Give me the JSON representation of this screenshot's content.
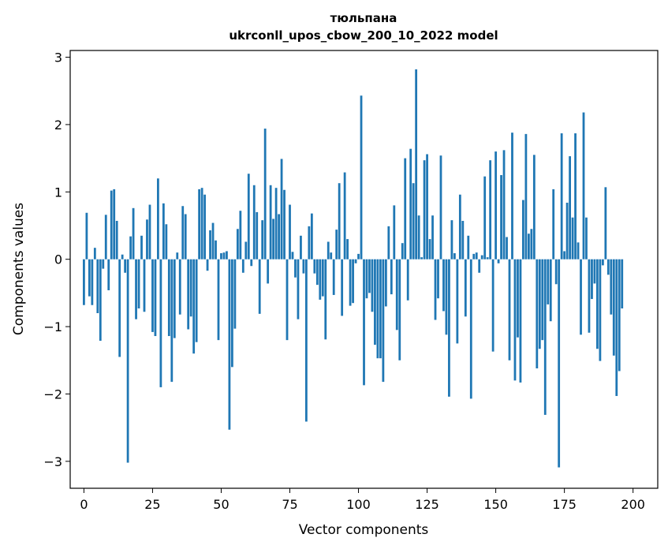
{
  "chart_data": {
    "type": "bar",
    "title": "тюльпана",
    "subtitle": "ukrconll_upos_cbow_200_10_2022 model",
    "xlabel": "Vector components",
    "ylabel": "Components values",
    "xlim": [
      -5,
      209
    ],
    "ylim": [
      -3.4,
      3.1
    ],
    "xticks": [
      0,
      25,
      50,
      75,
      100,
      125,
      150,
      175,
      200
    ],
    "yticks": [
      -3,
      -2,
      -1,
      0,
      1,
      2,
      3
    ],
    "ytick_labels": [
      "−3",
      "−2",
      "−1",
      "0",
      "1",
      "2",
      "3"
    ],
    "bar_color": "#1f77b4",
    "series": [
      {
        "name": "тюльпана",
        "values": [
          -0.68,
          0.69,
          -0.55,
          -0.68,
          0.17,
          -0.8,
          -1.21,
          -0.14,
          0.66,
          -0.46,
          1.02,
          1.04,
          0.57,
          -1.45,
          0.07,
          -0.2,
          -3.02,
          0.34,
          0.76,
          -0.89,
          -0.73,
          0.35,
          -0.78,
          0.59,
          0.81,
          -1.08,
          -1.14,
          1.2,
          -1.9,
          0.83,
          0.52,
          -1.14,
          -1.82,
          -1.17,
          0.1,
          -0.82,
          0.79,
          0.67,
          -1.04,
          -0.85,
          -1.4,
          -1.23,
          1.04,
          1.06,
          0.96,
          -0.17,
          0.43,
          0.54,
          0.28,
          -1.2,
          0.09,
          0.1,
          0.12,
          -2.53,
          -1.6,
          -1.03,
          0.45,
          0.72,
          -0.2,
          0.26,
          1.27,
          -0.1,
          1.1,
          0.7,
          -0.81,
          0.58,
          1.94,
          -0.36,
          1.1,
          0.6,
          1.06,
          0.67,
          1.49,
          1.03,
          -1.2,
          0.81,
          0.11,
          -0.27,
          -0.89,
          0.35,
          -0.21,
          -2.41,
          0.49,
          0.68,
          -0.21,
          -0.38,
          -0.6,
          -0.55,
          -1.19,
          0.26,
          0.1,
          -0.53,
          0.44,
          1.13,
          -0.84,
          1.29,
          0.3,
          -0.69,
          -0.65,
          -0.06,
          0.08,
          2.43,
          -1.87,
          -0.58,
          -0.5,
          -0.78,
          -1.27,
          -1.47,
          -1.47,
          -1.82,
          -0.7,
          0.49,
          -0.52,
          0.8,
          -1.05,
          -1.5,
          0.24,
          1.5,
          -0.61,
          1.64,
          1.13,
          2.82,
          0.65,
          0.03,
          1.47,
          1.56,
          0.3,
          0.65,
          -0.9,
          -0.58,
          1.54,
          -0.77,
          -1.12,
          -2.04,
          0.58,
          0.09,
          -1.25,
          0.96,
          0.57,
          -0.85,
          0.35,
          -2.07,
          0.08,
          0.1,
          -0.2,
          0.06,
          1.23,
          0.03,
          1.47,
          -1.37,
          1.6,
          -0.06,
          1.25,
          1.62,
          0.33,
          -1.5,
          1.88,
          -1.8,
          -1.16,
          -1.83,
          0.88,
          1.86,
          0.38,
          0.45,
          1.55,
          -1.62,
          -1.33,
          -1.2,
          -2.31,
          -0.67,
          -0.92,
          1.04,
          -0.37,
          -3.09,
          1.87,
          0.12,
          0.84,
          1.53,
          0.62,
          1.87,
          0.25,
          -1.12,
          2.18,
          0.62,
          -1.09,
          -0.59,
          -0.36,
          -1.33,
          -1.51,
          -0.09,
          1.07,
          -0.23,
          -0.82,
          -1.43,
          -2.03,
          -1.66,
          -0.73
        ]
      }
    ]
  }
}
